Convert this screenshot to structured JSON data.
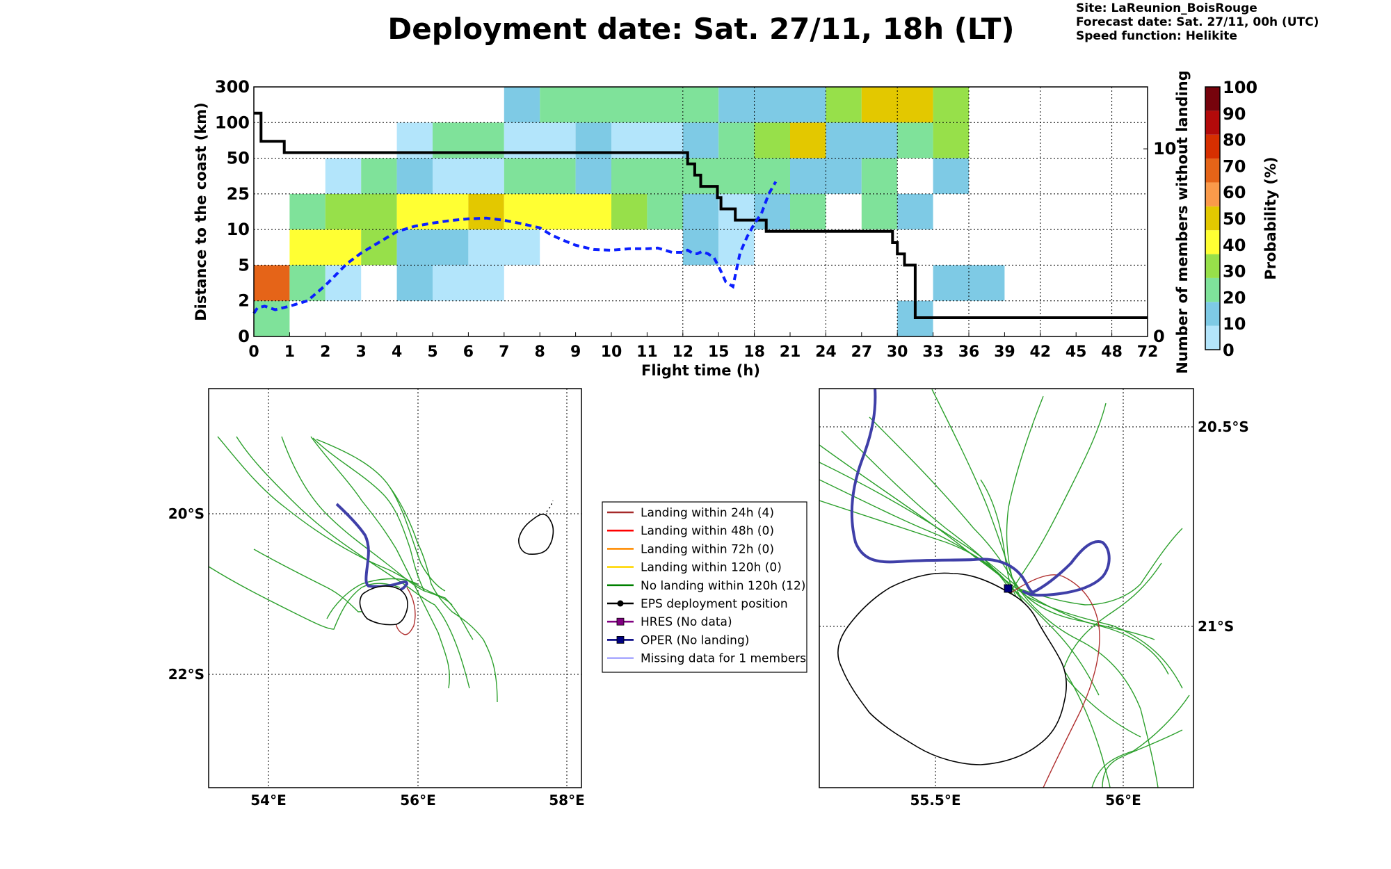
{
  "title": "Deployment date: Sat. 27/11, 18h (LT)",
  "info": {
    "site": "Site: LaReunion_BoisRouge",
    "forecast": "Forecast date: Sat. 27/11, 00h (UTC)",
    "speed": "Speed function: Helikite"
  },
  "chart_data": [
    {
      "type": "heatmap",
      "xlabel": "Flight time (h)",
      "ylabel": "Distance to the coast (km)",
      "y2label": "Number of members without landing",
      "colorbar_label": "Probability (%)",
      "x_ticks": [
        "0",
        "1",
        "2",
        "3",
        "4",
        "5",
        "6",
        "7",
        "8",
        "9",
        "10",
        "11",
        "12",
        "15",
        "18",
        "21",
        "24",
        "27",
        "30",
        "33",
        "36",
        "39",
        "42",
        "45",
        "48",
        "72"
      ],
      "x_gridlines_at": [
        "12",
        "18",
        "24",
        "30",
        "36",
        "42",
        "48"
      ],
      "y_ticks": [
        "0",
        "2",
        "5",
        "10",
        "25",
        "50",
        "100",
        "300"
      ],
      "y2_ticks": [
        0,
        10
      ],
      "y2_range": [
        0,
        13.3
      ],
      "colorbar": {
        "ticks": [
          "0",
          "10",
          "20",
          "30",
          "40",
          "50",
          "60",
          "70",
          "80",
          "90",
          "100"
        ],
        "colors": [
          "#b3e5fb",
          "#7ecae5",
          "#7fe29a",
          "#97e04a",
          "#ffff33",
          "#e3c800",
          "#fa9a4a",
          "#e56418",
          "#d62f00",
          "#b30a0a",
          "#76030c"
        ]
      },
      "cells_by_row": [
        [
          {
            "from": 0,
            "to": 1,
            "p": 20
          },
          {
            "from": 18,
            "to": 19,
            "p": 10
          }
        ],
        [
          {
            "from": 0,
            "to": 1,
            "p": 70
          },
          {
            "from": 1,
            "to": 2,
            "p": 20
          },
          {
            "from": 2,
            "to": 3,
            "p": 0
          },
          {
            "from": 4,
            "to": 5,
            "p": 10
          },
          {
            "from": 5,
            "to": 7,
            "p": 0
          },
          {
            "from": 19,
            "to": 21,
            "p": 10
          }
        ],
        [
          {
            "from": 1,
            "to": 3,
            "p": 40
          },
          {
            "from": 3,
            "to": 4,
            "p": 30
          },
          {
            "from": 4,
            "to": 6,
            "p": 10
          },
          {
            "from": 6,
            "to": 8,
            "p": 0
          },
          {
            "from": 12,
            "to": 13,
            "p": 10
          },
          {
            "from": 13,
            "to": 14,
            "p": 0
          }
        ],
        [
          {
            "from": 1,
            "to": 2,
            "p": 20
          },
          {
            "from": 2,
            "to": 4,
            "p": 30
          },
          {
            "from": 4,
            "to": 6,
            "p": 40
          },
          {
            "from": 6,
            "to": 7,
            "p": 50
          },
          {
            "from": 7,
            "to": 10,
            "p": 40
          },
          {
            "from": 10,
            "to": 11,
            "p": 30
          },
          {
            "from": 11,
            "to": 12,
            "p": 20
          },
          {
            "from": 12,
            "to": 13,
            "p": 10
          },
          {
            "from": 13,
            "to": 14,
            "p": 0
          },
          {
            "from": 14,
            "to": 15,
            "p": 10
          },
          {
            "from": 15,
            "to": 16,
            "p": 20
          },
          {
            "from": 17,
            "to": 18,
            "p": 20
          },
          {
            "from": 18,
            "to": 19,
            "p": 10
          }
        ],
        [
          {
            "from": 2,
            "to": 3,
            "p": 0
          },
          {
            "from": 3,
            "to": 4,
            "p": 20
          },
          {
            "from": 4,
            "to": 5,
            "p": 10
          },
          {
            "from": 5,
            "to": 7,
            "p": 0
          },
          {
            "from": 7,
            "to": 9,
            "p": 20
          },
          {
            "from": 9,
            "to": 10,
            "p": 10
          },
          {
            "from": 10,
            "to": 15,
            "p": 20
          },
          {
            "from": 15,
            "to": 17,
            "p": 10
          },
          {
            "from": 17,
            "to": 18,
            "p": 20
          },
          {
            "from": 19,
            "to": 20,
            "p": 10
          }
        ],
        [
          {
            "from": 4,
            "to": 5,
            "p": 0
          },
          {
            "from": 5,
            "to": 7,
            "p": 20
          },
          {
            "from": 7,
            "to": 9,
            "p": 0
          },
          {
            "from": 9,
            "to": 10,
            "p": 10
          },
          {
            "from": 10,
            "to": 12,
            "p": 0
          },
          {
            "from": 12,
            "to": 13,
            "p": 10
          },
          {
            "from": 13,
            "to": 14,
            "p": 20
          },
          {
            "from": 14,
            "to": 15,
            "p": 30
          },
          {
            "from": 15,
            "to": 16,
            "p": 50
          },
          {
            "from": 16,
            "to": 18,
            "p": 10
          },
          {
            "from": 18,
            "to": 19,
            "p": 20
          },
          {
            "from": 19,
            "to": 20,
            "p": 30
          }
        ],
        [
          {
            "from": 7,
            "to": 8,
            "p": 10
          },
          {
            "from": 8,
            "to": 12,
            "p": 20
          },
          {
            "from": 12,
            "to": 13,
            "p": 20
          },
          {
            "from": 13,
            "to": 16,
            "p": 10
          },
          {
            "from": 16,
            "to": 17,
            "p": 30
          },
          {
            "from": 17,
            "to": 19,
            "p": 50
          },
          {
            "from": 19,
            "to": 20,
            "p": 30
          }
        ]
      ],
      "series": [
        {
          "name": "",
          "style": "black-solid",
          "axis": "right",
          "x": [
            0,
            0.2,
            0.2,
            0.85,
            0.85,
            12.4,
            12.4,
            13.0,
            13.0,
            13.5,
            13.5,
            14.9,
            14.9,
            15.2,
            15.2,
            16.4,
            16.4,
            19.0,
            19.0,
            29.6,
            29.6,
            30.0,
            30.0,
            30.6,
            30.6,
            31.5,
            31.5,
            72
          ],
          "y": [
            11.9,
            11.9,
            10.4,
            10.4,
            9.8,
            9.8,
            9.2,
            9.2,
            8.6,
            8.6,
            8.0,
            8.0,
            7.4,
            7.4,
            6.8,
            6.8,
            6.2,
            6.2,
            5.6,
            5.6,
            5.0,
            5.0,
            4.4,
            4.4,
            3.8,
            3.8,
            1.0,
            1.0
          ]
        },
        {
          "name": "",
          "style": "blue-dashed",
          "axis": "left",
          "x": [
            0,
            0.1,
            0.3,
            0.6,
            1.0,
            1.5,
            2.0,
            2.3,
            2.6,
            3.0,
            3.5,
            4.0,
            4.5,
            5.0,
            5.5,
            6.0,
            6.5,
            7.0,
            7.5,
            8.0,
            8.3,
            8.6,
            9.0,
            9.5,
            10.0,
            10.5,
            11.0,
            11.3,
            11.7,
            12.0,
            12.4,
            12.6,
            12.9,
            13.2,
            13.6,
            14.1,
            14.6,
            15.1,
            15.6,
            16.2,
            16.8,
            17.4,
            18.0,
            18.6,
            19.2,
            19.8
          ],
          "y": [
            "1.3",
            "1.6",
            "1.7",
            "1.5",
            "1.7",
            "2.0",
            "3.3",
            "4.2",
            "5.2",
            "6.7",
            "8.2",
            "9.7",
            "11.4",
            "12.7",
            "13.8",
            "14.5",
            "14.8",
            "13.9",
            "12.4",
            "10.7",
            "9.3",
            "8.6",
            "7.8",
            "7.2",
            "7.1",
            "7.3",
            "7.3",
            "7.4",
            "6.8",
            "6.8",
            "7.1",
            "6.9",
            "6.6",
            "6.6",
            "6.9",
            "6.6",
            "6.1",
            "4.7",
            "3.6",
            "3.2",
            "6.7",
            "9.0",
            "12.4",
            "16.8",
            "24.9",
            "33.5"
          ]
        }
      ]
    },
    {
      "type": "map",
      "name": "overview",
      "lon_ticks": [
        "54°E",
        "56°E",
        "58°E"
      ],
      "lat_ticks": [
        "20°S",
        "22°S"
      ],
      "lon_range": [
        53.2,
        58.2
      ],
      "lat_range": [
        -23.5,
        -18.0
      ]
    },
    {
      "type": "map",
      "name": "zoom",
      "lon_ticks": [
        "55.5°E",
        "56°E"
      ],
      "lat_ticks": [
        "20.5°S",
        "21°S"
      ],
      "lon_range": [
        55.2,
        56.2
      ],
      "lat_range": [
        -21.4,
        -20.35
      ]
    }
  ],
  "legend": [
    {
      "label": "Landing within 24h (4)",
      "color": "#a52a2a",
      "marker": "none"
    },
    {
      "label": "Landing within 48h (0)",
      "color": "#ff0000",
      "marker": "none"
    },
    {
      "label": "Landing within 72h (0)",
      "color": "#ff8c00",
      "marker": "none"
    },
    {
      "label": "Landing within 120h (0)",
      "color": "#ffd700",
      "marker": "none"
    },
    {
      "label": "No landing within 120h (12)",
      "color": "#008000",
      "marker": "none"
    },
    {
      "label": "EPS deployment position",
      "color": "#000000",
      "marker": "circle"
    },
    {
      "label": "HRES (No data)",
      "color": "#800080",
      "marker": "square"
    },
    {
      "label": "OPER (No landing)",
      "color": "#000080",
      "marker": "square"
    },
    {
      "label": "Missing data for 1 members",
      "color": "#4d4dff",
      "marker": "thin"
    }
  ],
  "colors": {
    "member_track": "#2ca02c",
    "oper_track": "#3f3fa8",
    "landing_24h_track": "#b03030",
    "coastline": "#000000"
  }
}
